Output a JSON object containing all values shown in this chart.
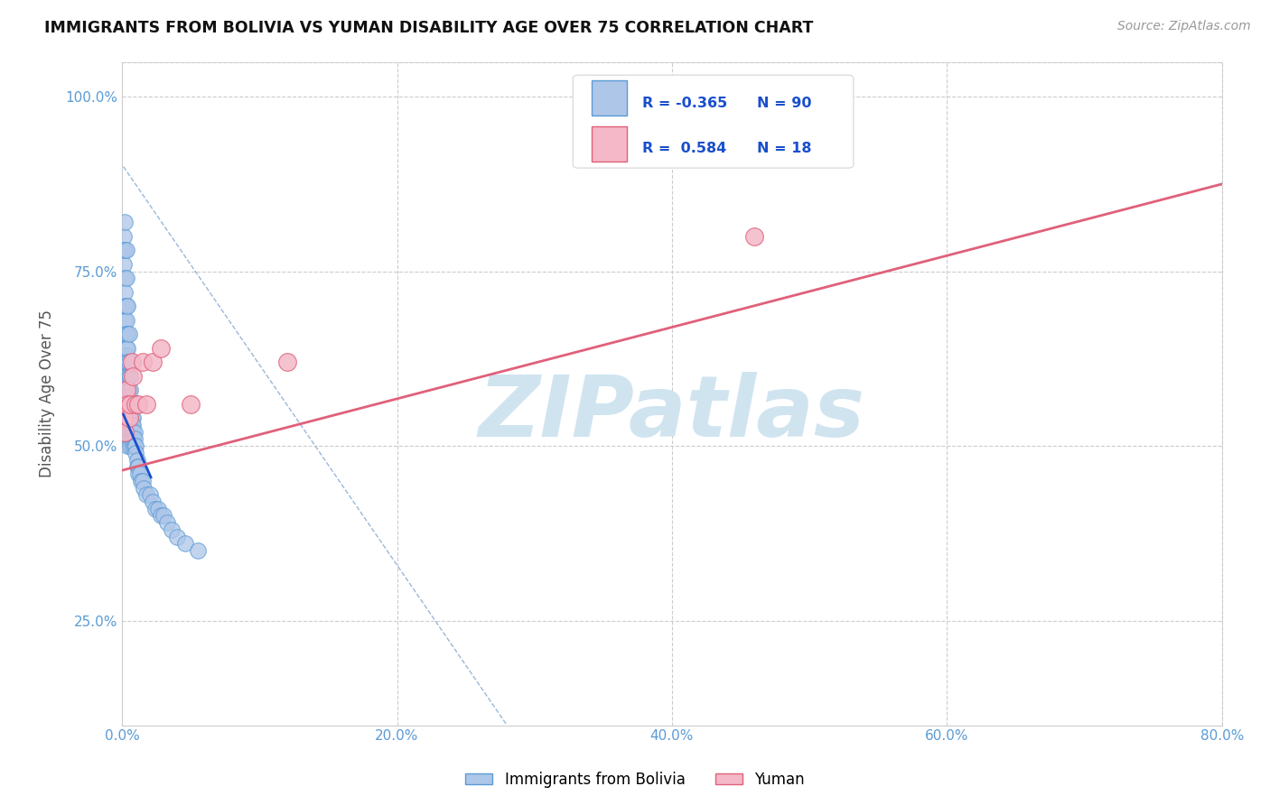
{
  "title": "IMMIGRANTS FROM BOLIVIA VS YUMAN DISABILITY AGE OVER 75 CORRELATION CHART",
  "source": "Source: ZipAtlas.com",
  "ylabel": "Disability Age Over 75",
  "xlim": [
    0.0,
    0.8
  ],
  "ylim": [
    0.1,
    1.05
  ],
  "xticks": [
    0.0,
    0.2,
    0.4,
    0.6,
    0.8
  ],
  "xtick_labels": [
    "0.0%",
    "20.0%",
    "40.0%",
    "60.0%",
    "80.0%"
  ],
  "yticks": [
    0.25,
    0.5,
    0.75,
    1.0
  ],
  "ytick_labels": [
    "25.0%",
    "50.0%",
    "75.0%",
    "100.0%"
  ],
  "bolivia_color": "#aec6e8",
  "bolivia_edge": "#5b9bd5",
  "yuman_color": "#f4b8c8",
  "yuman_edge": "#e0607a",
  "blue_line_color": "#1a4fcc",
  "pink_line_color": "#e0607a",
  "dashed_line_color": "#9ab8d8",
  "watermark_color": "#d0e4f0",
  "watermark_text": "ZIPatlas",
  "legend_label1": "Immigrants from Bolivia",
  "legend_label2": "Yuman",
  "bolivia_x": [
    0.001,
    0.001,
    0.001,
    0.002,
    0.002,
    0.002,
    0.002,
    0.002,
    0.002,
    0.002,
    0.003,
    0.003,
    0.003,
    0.003,
    0.003,
    0.003,
    0.003,
    0.003,
    0.003,
    0.003,
    0.003,
    0.004,
    0.004,
    0.004,
    0.004,
    0.004,
    0.004,
    0.004,
    0.004,
    0.004,
    0.004,
    0.004,
    0.004,
    0.004,
    0.004,
    0.005,
    0.005,
    0.005,
    0.005,
    0.005,
    0.005,
    0.005,
    0.005,
    0.005,
    0.005,
    0.006,
    0.006,
    0.006,
    0.006,
    0.006,
    0.006,
    0.006,
    0.006,
    0.006,
    0.007,
    0.007,
    0.007,
    0.007,
    0.007,
    0.007,
    0.008,
    0.008,
    0.008,
    0.008,
    0.008,
    0.009,
    0.009,
    0.009,
    0.01,
    0.01,
    0.011,
    0.011,
    0.012,
    0.012,
    0.013,
    0.014,
    0.015,
    0.016,
    0.018,
    0.02,
    0.022,
    0.024,
    0.026,
    0.028,
    0.03,
    0.033,
    0.036,
    0.04,
    0.046,
    0.055
  ],
  "bolivia_y": [
    0.8,
    0.78,
    0.76,
    0.82,
    0.78,
    0.74,
    0.72,
    0.7,
    0.68,
    0.66,
    0.78,
    0.74,
    0.7,
    0.68,
    0.66,
    0.64,
    0.63,
    0.62,
    0.6,
    0.59,
    0.57,
    0.7,
    0.66,
    0.64,
    0.62,
    0.6,
    0.58,
    0.57,
    0.56,
    0.55,
    0.54,
    0.53,
    0.52,
    0.51,
    0.5,
    0.66,
    0.62,
    0.6,
    0.58,
    0.56,
    0.55,
    0.54,
    0.53,
    0.52,
    0.51,
    0.6,
    0.58,
    0.56,
    0.55,
    0.54,
    0.53,
    0.52,
    0.51,
    0.5,
    0.56,
    0.55,
    0.54,
    0.53,
    0.52,
    0.51,
    0.54,
    0.53,
    0.52,
    0.51,
    0.5,
    0.52,
    0.51,
    0.5,
    0.5,
    0.49,
    0.48,
    0.47,
    0.47,
    0.46,
    0.46,
    0.45,
    0.45,
    0.44,
    0.43,
    0.43,
    0.42,
    0.41,
    0.41,
    0.4,
    0.4,
    0.39,
    0.38,
    0.37,
    0.36,
    0.35
  ],
  "yuman_x": [
    0.001,
    0.002,
    0.003,
    0.004,
    0.005,
    0.006,
    0.007,
    0.008,
    0.01,
    0.012,
    0.015,
    0.018,
    0.022,
    0.028,
    0.05,
    0.12,
    0.38,
    0.46
  ],
  "yuman_y": [
    0.54,
    0.52,
    0.58,
    0.56,
    0.54,
    0.56,
    0.62,
    0.6,
    0.56,
    0.56,
    0.62,
    0.56,
    0.62,
    0.64,
    0.56,
    0.62,
    0.97,
    0.8
  ],
  "blue_trend_x": [
    0.001,
    0.021
  ],
  "blue_trend_y": [
    0.545,
    0.455
  ],
  "pink_trend_x": [
    0.0,
    0.8
  ],
  "pink_trend_y": [
    0.465,
    0.875
  ],
  "dashed_trend_x": [
    0.001,
    0.28
  ],
  "dashed_trend_y": [
    0.9,
    0.1
  ]
}
